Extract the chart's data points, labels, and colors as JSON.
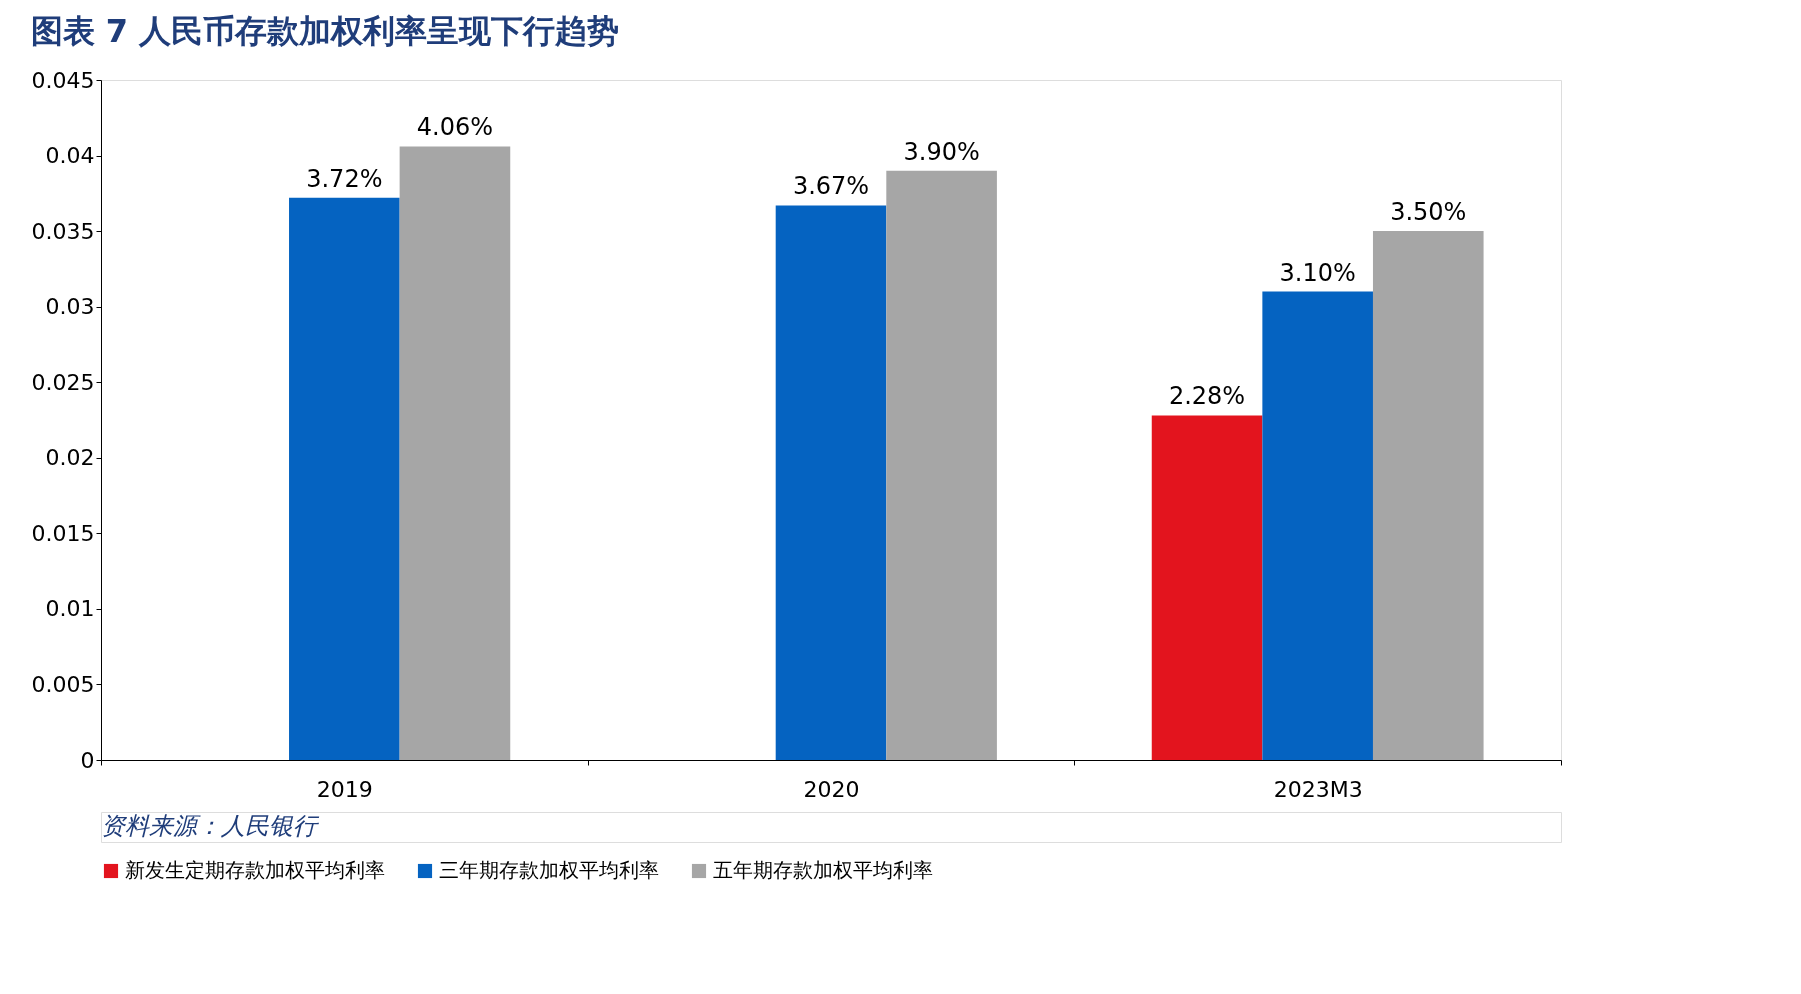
{
  "chart_data": {
    "type": "bar",
    "title": "图表 7 人民币存款加权利率呈现下行趋势",
    "categories": [
      "2019",
      "2020",
      "2023M3"
    ],
    "series": [
      {
        "name": "新发生定期存款加权平均利率",
        "color": "#e3141e",
        "values": [
          null,
          null,
          0.0228
        ],
        "value_labels": [
          null,
          null,
          "2.28%"
        ]
      },
      {
        "name": "三年期存款加权平均利率",
        "color": "#0563c1",
        "values": [
          0.0372,
          0.0367,
          0.031
        ],
        "value_labels": [
          "3.72%",
          "3.67%",
          "3.10%"
        ]
      },
      {
        "name": "五年期存款加权平均利率",
        "color": "#a6a6a6",
        "values": [
          0.0406,
          0.039,
          0.035
        ],
        "value_labels": [
          "4.06%",
          "3.90%",
          "3.50%"
        ]
      }
    ],
    "ylim": [
      0,
      0.045
    ],
    "yticks": [
      0,
      0.005,
      0.01,
      0.015,
      0.02,
      0.025,
      0.03,
      0.035,
      0.04,
      0.045
    ],
    "grid": false,
    "legend": "bottom",
    "annotations": [
      "资料来源：人民银行"
    ]
  }
}
